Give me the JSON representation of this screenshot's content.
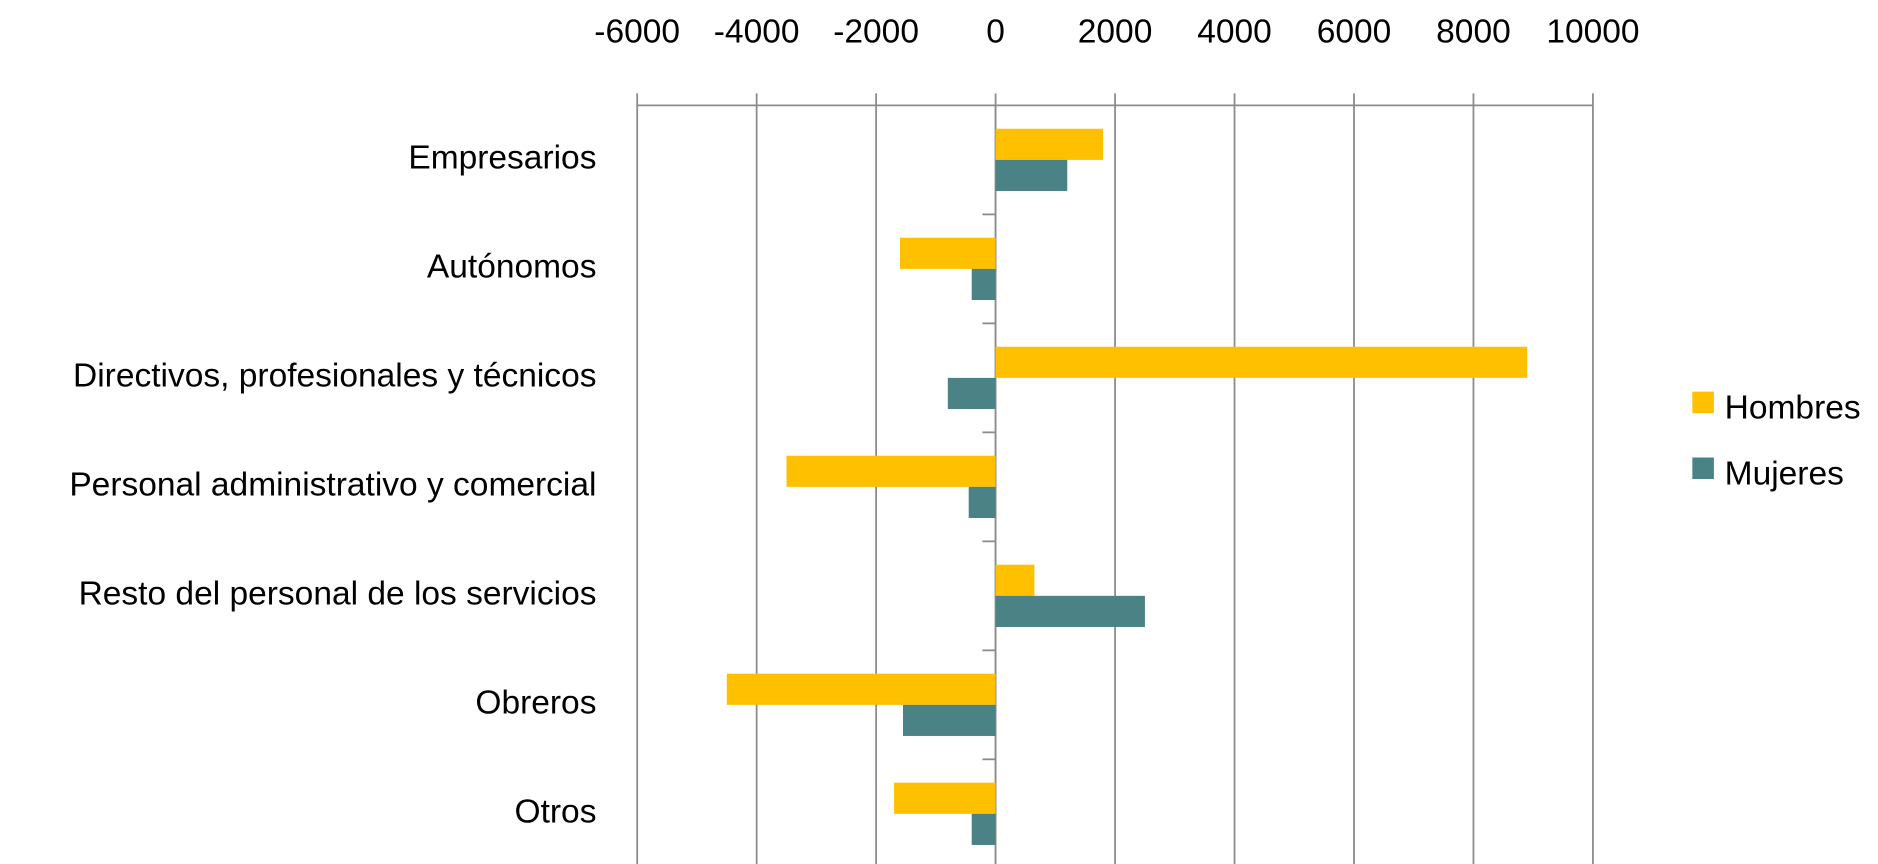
{
  "chart_data": {
    "type": "hbar",
    "categories": [
      "Empresarios",
      "Autónomos",
      "Directivos, profesionales y técnicos",
      "Personal administrativo y comercial",
      "Resto del personal de los servicios",
      "Obreros",
      "Otros"
    ],
    "series": [
      {
        "name": "Hombres",
        "color": "#ffc000",
        "values": [
          1800,
          -1600,
          8900,
          -3500,
          650,
          -4500,
          -1700
        ]
      },
      {
        "name": "Mujeres",
        "color": "#4a8286",
        "values": [
          1200,
          -400,
          -800,
          -450,
          2500,
          -1550,
          -400
        ]
      }
    ],
    "xlim": [
      -6000,
      10000
    ],
    "xticks": [
      -6000,
      -4000,
      -2000,
      0,
      2000,
      4000,
      6000,
      8000,
      10000
    ],
    "grid": true,
    "legend": "right"
  }
}
